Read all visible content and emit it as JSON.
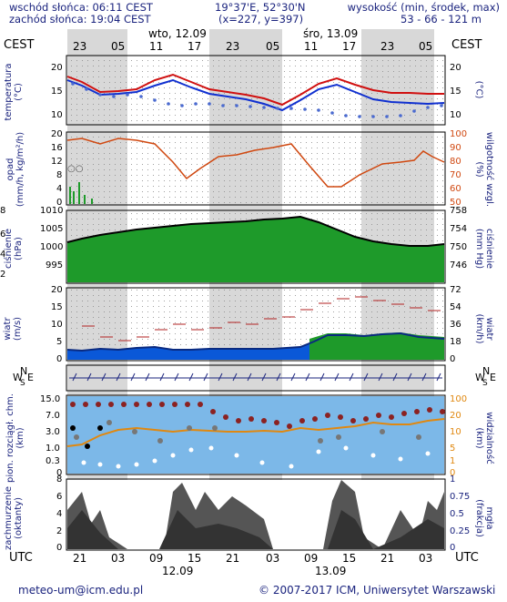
{
  "header": {
    "sunrise": "wschód słońca: 06:11 CEST",
    "sunset": "zachód słońca: 19:04 CEST",
    "coords": "19°37'E, 52°30'N",
    "grid": "(x=227, y=397)",
    "elev_label": "wysokość (min, środek, max)",
    "elev_values": "53 - 66 - 121 m"
  },
  "top_axis": {
    "tz_left": "CEST",
    "tz_right": "CEST",
    "day1": "wto, 12.09",
    "day2": "śro, 13.09",
    "hours": [
      "23",
      "05",
      "11",
      "17",
      "23",
      "05",
      "11",
      "17",
      "23",
      "05"
    ]
  },
  "bottom_axis": {
    "tz_left": "UTC",
    "tz_right": "UTC",
    "hours": [
      "21",
      "03",
      "09",
      "15",
      "21",
      "03",
      "09",
      "15",
      "21",
      "03"
    ],
    "date1": "12.09",
    "date2": "13.09"
  },
  "panels": {
    "temperature": {
      "label": "temperatura\n(°C)",
      "right_label": "(°C)",
      "ticks": [
        "20",
        "15",
        "10"
      ]
    },
    "precip": {
      "label": "opad\n(mm/h, kg/m²/h)",
      "right_label": "wilgotność wzgl.\n(%)",
      "left_ticks": [
        "20",
        "16",
        "12",
        "8",
        "4",
        "0"
      ],
      "right_ticks": [
        "100",
        "90",
        "80",
        "70",
        "60",
        "50"
      ],
      "marker": "○○"
    },
    "pressure": {
      "label": "ciśnienie\n(hPa)",
      "right_label": "ciśnienie\n(mm Hg)",
      "left_ticks": [
        "1010",
        "1005",
        "1000",
        "995"
      ],
      "right_ticks": [
        "758",
        "754",
        "750",
        "746"
      ],
      "edge_marks": [
        "8",
        "6",
        "4",
        "2"
      ]
    },
    "wind": {
      "label": "wiatr\n(m/s)",
      "right_label": "wiatr\n(km/h)",
      "left_ticks": [
        "20",
        "15",
        "10",
        "5",
        "0"
      ],
      "right_ticks": [
        "72",
        "54",
        "36",
        "18",
        "0"
      ]
    },
    "direction": {
      "left_n": "N",
      "left_w": "W",
      "left_e": "E",
      "left_s": "S",
      "right_n": "N",
      "right_w": "W",
      "right_e": "E",
      "right_s": "S"
    },
    "cloudbase": {
      "label": "pion. rozciągł. chm.\n(km)",
      "right_label": "widzialność\n(km)",
      "left_ticks": [
        "15.0",
        "7.0",
        "3.0",
        "1.0",
        "0.3",
        "0"
      ],
      "right_ticks": [
        "100",
        "20",
        "10",
        "5",
        "1",
        "0"
      ]
    },
    "clouds": {
      "label": "zachmurzenie\n(oktanty)",
      "right_label": "mgła\n(frakcja)",
      "left_ticks": [
        "8",
        "6",
        "4",
        "2",
        "0"
      ],
      "right_ticks": [
        "1",
        "0.75",
        "0.5",
        "0.25",
        "0"
      ]
    }
  },
  "footer": {
    "email": "meteo-um@icm.edu.pl",
    "copyright": "© 2007-2017 ICM, Uniwersytet Warszawski"
  },
  "chart_data": [
    {
      "type": "line",
      "name": "temperature",
      "x": [
        "21",
        "00",
        "03",
        "06",
        "09",
        "12",
        "15",
        "18",
        "21",
        "00",
        "03",
        "06",
        "09",
        "12",
        "15",
        "18",
        "21",
        "00",
        "03",
        "06"
      ],
      "series": [
        {
          "name": "max",
          "values": [
            18,
            17,
            15,
            15,
            15,
            17,
            19,
            18,
            16,
            15,
            14,
            12,
            15,
            18,
            18,
            16,
            15,
            15,
            15,
            15
          ]
        },
        {
          "name": "mid",
          "values": [
            17,
            16,
            15,
            14,
            15,
            16,
            18,
            17,
            15,
            14,
            13,
            11,
            13,
            16,
            16,
            15,
            13,
            13,
            13,
            13
          ]
        },
        {
          "name": "dew",
          "values": [
            16,
            15,
            14,
            14,
            14,
            13,
            12,
            12,
            12,
            12,
            12,
            12,
            11,
            11,
            11,
            11,
            11,
            11,
            12,
            12
          ]
        }
      ],
      "ylim": [
        9,
        22
      ]
    },
    {
      "type": "line",
      "name": "humidity",
      "values": [
        98,
        97,
        95,
        96,
        96,
        85,
        70,
        75,
        80,
        82,
        85,
        88,
        65,
        55,
        65,
        75,
        80,
        80,
        85,
        82
      ],
      "ylim": [
        50,
        100
      ]
    },
    {
      "type": "area",
      "name": "pressure",
      "values": [
        999,
        1000,
        1001,
        1002,
        1003,
        1004,
        1005,
        1005.5,
        1006,
        1006,
        1006.5,
        1007,
        1007.5,
        1008,
        1006,
        1003,
        1001,
        999.5,
        999,
        999.5
      ],
      "ylim": [
        992,
        1012
      ]
    },
    {
      "type": "area",
      "name": "wind",
      "values": [
        4,
        3.5,
        3,
        3,
        3.5,
        4,
        4,
        3.5,
        3.5,
        3.5,
        4,
        4,
        6,
        8,
        7,
        7,
        6,
        6,
        5,
        5
      ],
      "gust": [
        9,
        8,
        7,
        7,
        6,
        6,
        9,
        10,
        9,
        9,
        10,
        12,
        16,
        18,
        18,
        17,
        16,
        15,
        13,
        12
      ],
      "ylim": [
        0,
        20
      ]
    }
  ]
}
